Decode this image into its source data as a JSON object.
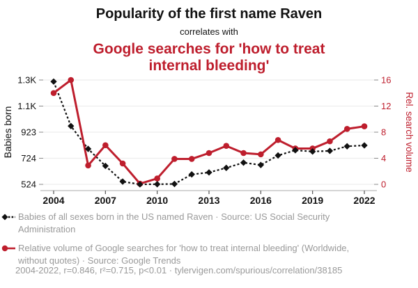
{
  "header": {
    "title": "Popularity of the first name Raven",
    "connector": "correlates with",
    "subtitle": "Google searches for 'how to treat internal bleeding'"
  },
  "chart_data": {
    "type": "line",
    "x": [
      2004,
      2005,
      2006,
      2007,
      2008,
      2009,
      2010,
      2011,
      2012,
      2013,
      2014,
      2015,
      2016,
      2017,
      2018,
      2019,
      2020,
      2021,
      2022
    ],
    "x_ticks": [
      2004,
      2007,
      2010,
      2013,
      2016,
      2019,
      2022
    ],
    "x_min": 2004,
    "x_max": 2022,
    "series": [
      {
        "name": "Babies of all sexes born in the US named Raven",
        "axis": "left",
        "color": "#111111",
        "style": "dashed",
        "marker": "diamond",
        "values": [
          1310,
          970,
          795,
          665,
          545,
          524,
          525,
          527,
          600,
          615,
          650,
          690,
          672,
          745,
          785,
          775,
          780,
          815,
          822
        ]
      },
      {
        "name": "Relative volume of Google searches for 'how to treat internal bleeding'",
        "axis": "right",
        "color": "#be1e2d",
        "style": "solid",
        "marker": "circle",
        "values": [
          14,
          16,
          2.9,
          6,
          3.2,
          0.1,
          0.9,
          3.9,
          3.9,
          4.8,
          5.9,
          4.8,
          4.6,
          6.8,
          5.5,
          5.5,
          6.6,
          8.5,
          8.9
        ]
      }
    ],
    "left_axis": {
      "label": "Babies born",
      "tick_labels": [
        "524",
        "724",
        "923",
        "1.1K",
        "1.3K"
      ],
      "min": 524,
      "max": 1322
    },
    "right_axis": {
      "label": "Rel. search volume",
      "tick_labels": [
        "0",
        "4",
        "8",
        "12",
        "16"
      ],
      "min": 0,
      "max": 16
    },
    "grid": true,
    "legend_position": "bottom"
  },
  "legend": {
    "items": [
      {
        "label": "Babies of all sexes born in the US named Raven · Source: US Social Security Administration",
        "color": "#111111",
        "marker": "diamond-dashed-line"
      },
      {
        "label": "Relative volume of Google searches for 'how to treat internal bleeding' (Worldwide, without quotes) · Source: Google Trends",
        "color": "#be1e2d",
        "marker": "circle-solid-line"
      }
    ]
  },
  "footer": {
    "text": "2004-2022, r=0.846, r²=0.715, p<0.01 · tylervigen.com/spurious/correlation/38185"
  },
  "colors": {
    "accent_red": "#be1e2d",
    "text_black": "#111111",
    "text_gray": "#999999",
    "gridline": "#ededed",
    "axis_line": "#bbbbbb",
    "tick": "#888888"
  }
}
